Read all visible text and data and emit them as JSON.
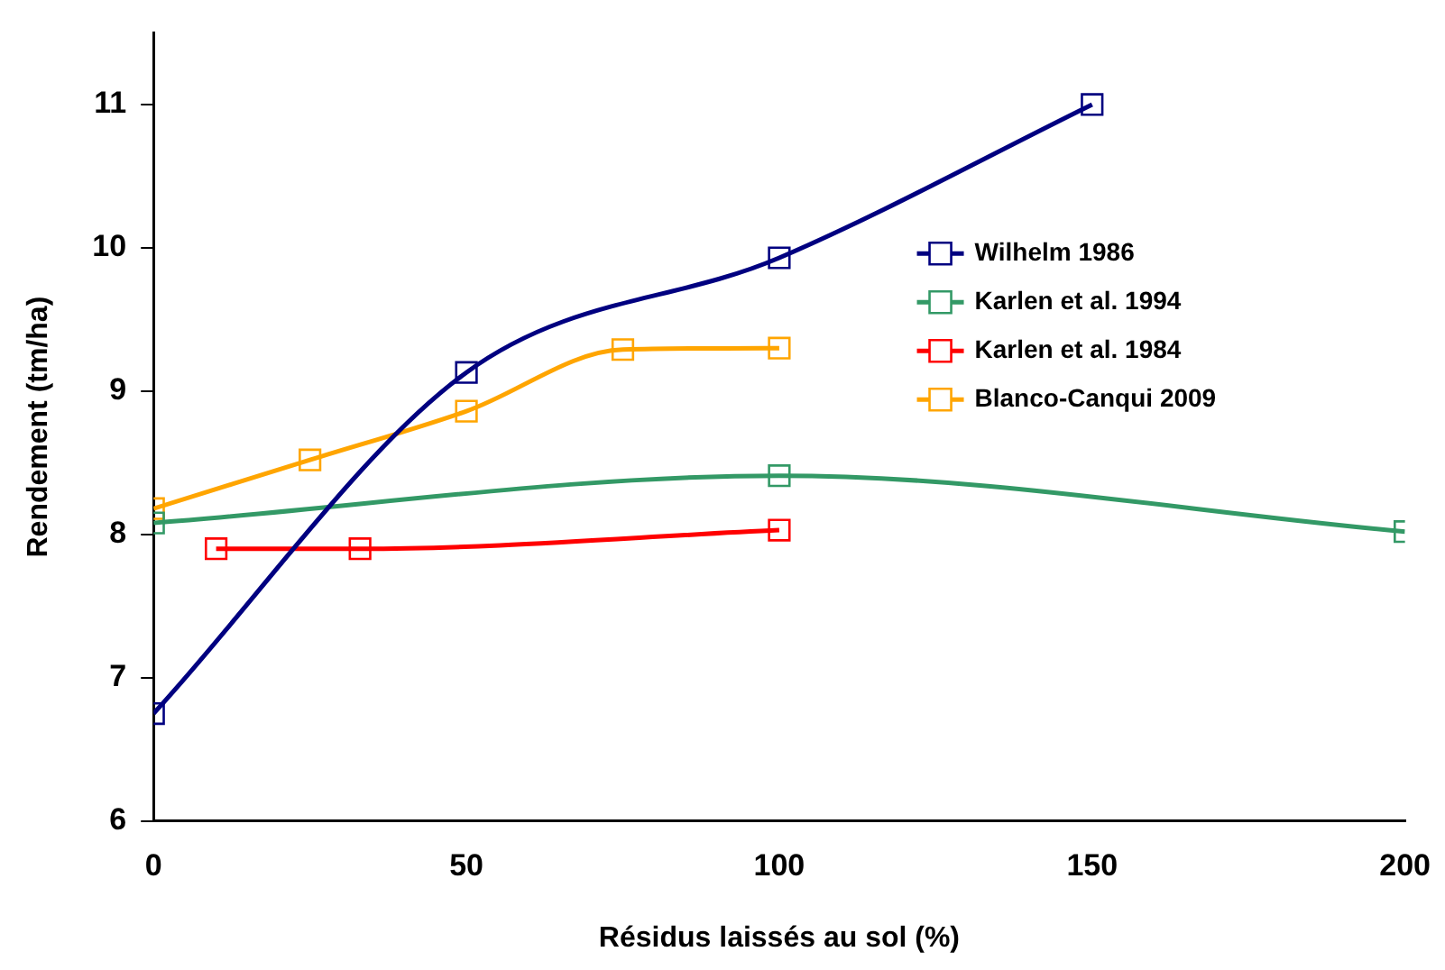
{
  "chart_data": {
    "type": "line",
    "xlabel": "Résidus laissés au sol (%)",
    "ylabel": "Rendement (tm/ha)",
    "xlim": [
      0,
      200
    ],
    "xticks": [
      0,
      50,
      100,
      150,
      200
    ],
    "ylim": [
      6,
      11.5
    ],
    "yticks": [
      6,
      7,
      8,
      9,
      10,
      11
    ],
    "grid": false,
    "legend": "top right",
    "marker": "square",
    "line_style": "solid",
    "series": [
      {
        "name": "Wilhelm 1986",
        "color": "#000080",
        "x": [
          0,
          50,
          100,
          150
        ],
        "values": [
          6.75,
          9.13,
          9.93,
          11.0
        ]
      },
      {
        "name": "Karlen et al. 1994",
        "color": "#339966",
        "x": [
          0,
          100,
          200
        ],
        "values": [
          8.08,
          8.41,
          8.02
        ]
      },
      {
        "name": "Karlen et al. 1984",
        "color": "#ff0000",
        "x": [
          10,
          33,
          100
        ],
        "values": [
          7.9,
          7.9,
          8.03
        ]
      },
      {
        "name": "Blanco-Canqui 2009",
        "color": "#ffa500",
        "x": [
          0,
          25,
          50,
          75,
          100
        ],
        "values": [
          8.18,
          8.52,
          8.86,
          9.29,
          9.3
        ]
      }
    ]
  }
}
